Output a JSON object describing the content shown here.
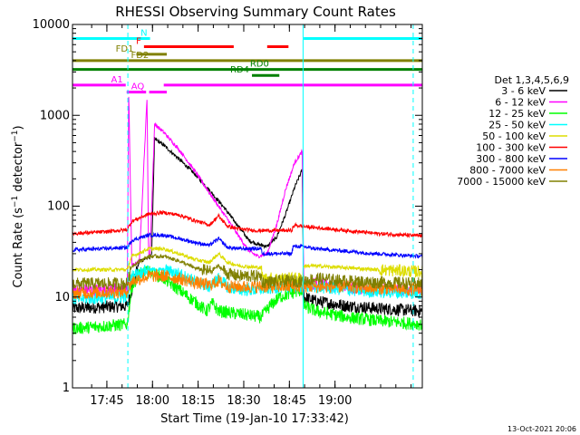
{
  "chart_data": {
    "type": "line",
    "title": "RHESSI Observing Summary Count Rates",
    "xlabel": "Start Time (19-Jan-10 17:33:42)",
    "ylabel": "Count Rate (s⁻¹ detector⁻¹)",
    "ylabel_parts": {
      "main": "Count Rate (s",
      "sup1": "−1",
      "mid": " detector",
      "sup2": "−1",
      "end": ")"
    },
    "yscale": "log",
    "xlim_min": [
      -0.0,
      115
    ],
    "ylim": [
      1,
      10000
    ],
    "ytick_values": [
      1,
      10,
      100,
      1000,
      10000
    ],
    "ytick_labels": [
      "1",
      "10",
      "100",
      "1000",
      "10000"
    ],
    "xtick_minutes": [
      11.3,
      26.3,
      41.3,
      56.3,
      71.3,
      86.3
    ],
    "xtick_labels": [
      "17:45",
      "18:00",
      "18:15",
      "18:30",
      "18:45",
      "19:00"
    ],
    "legend_title": "Det 1,3,4,5,6,9",
    "series": [
      {
        "name": "3 - 6 keV",
        "color": "#000000",
        "x": [
          0,
          18,
          19.5,
          22,
          26,
          27,
          30,
          35,
          40,
          45,
          50,
          53,
          56,
          58,
          61,
          64,
          67,
          70,
          73,
          75.5,
          76,
          80,
          90,
          100,
          115
        ],
        "values": [
          7.5,
          8,
          12,
          25,
          28,
          550,
          470,
          330,
          230,
          150,
          95,
          70,
          52,
          42,
          38,
          36,
          45,
          80,
          160,
          250,
          10,
          9,
          8,
          7.5,
          7
        ]
      },
      {
        "name": "6 - 12 keV",
        "color": "#ff00ff",
        "x": [
          0,
          18,
          18.5,
          19.5,
          22,
          24.5,
          25,
          25.5,
          27,
          30,
          35,
          40,
          45,
          50,
          55,
          58,
          61,
          64,
          67,
          70,
          73,
          75.5,
          76,
          80,
          90,
          100,
          115
        ],
        "values": [
          12,
          12,
          1900,
          22,
          25,
          1600,
          28,
          30,
          800,
          650,
          420,
          250,
          140,
          80,
          45,
          32,
          28,
          30,
          60,
          150,
          300,
          400,
          14,
          14,
          13,
          12,
          12
        ]
      },
      {
        "name": "12 - 25 keV",
        "color": "#00ff00",
        "x": [
          0,
          18,
          19.5,
          22,
          25,
          27,
          30,
          35,
          40,
          44,
          46,
          48,
          55,
          62,
          65,
          68,
          72,
          75.5,
          76,
          80,
          90,
          100,
          115
        ],
        "values": [
          4.5,
          5,
          13,
          18,
          19,
          18,
          16,
          12,
          9,
          7,
          8.5,
          7,
          6.5,
          6,
          8,
          10,
          11,
          12,
          8,
          7,
          6,
          5.5,
          5
        ]
      },
      {
        "name": "25 - 50 keV",
        "color": "#00ffff",
        "x": [
          0,
          18,
          19.5,
          25,
          30,
          35,
          40,
          45,
          48,
          51,
          55,
          60,
          65,
          70,
          75.5,
          76,
          80,
          90,
          100,
          115
        ],
        "values": [
          9.5,
          10,
          17,
          20,
          20,
          18,
          15,
          13,
          16,
          13,
          12,
          12,
          12.5,
          13,
          13,
          13,
          13,
          12,
          11.5,
          11
        ]
      },
      {
        "name": "50 - 100 keV",
        "color": "#dddd00",
        "x": [
          0,
          18,
          19.5,
          25,
          30,
          35,
          40,
          45,
          48,
          51,
          55,
          62,
          62.5,
          70,
          75.5,
          76,
          80,
          90,
          100,
          115
        ],
        "values": [
          20,
          20,
          28,
          34,
          34,
          30,
          26,
          24,
          30,
          24,
          22,
          21,
          16,
          16,
          16,
          22,
          22,
          21,
          20,
          19
        ]
      },
      {
        "name": "100 - 300 keV",
        "color": "#ff0000",
        "x": [
          0,
          10,
          18,
          19.5,
          25,
          30,
          35,
          40,
          45,
          48,
          51,
          55,
          60,
          62,
          68,
          72,
          73,
          75.5,
          80,
          90,
          100,
          115
        ],
        "values": [
          50,
          52,
          55,
          68,
          82,
          85,
          80,
          70,
          62,
          78,
          60,
          56,
          54,
          54,
          54,
          54,
          62,
          60,
          58,
          54,
          50,
          47
        ]
      },
      {
        "name": "300 - 800 keV",
        "color": "#0000ff",
        "x": [
          0,
          10,
          18,
          19.5,
          25,
          30,
          35,
          40,
          45,
          48,
          51,
          55,
          62,
          62.5,
          70,
          72,
          72.5,
          75.5,
          80,
          90,
          100,
          115
        ],
        "values": [
          33,
          34,
          35,
          42,
          48,
          48,
          44,
          40,
          37,
          44,
          35,
          34,
          34,
          30,
          30,
          30,
          36,
          36,
          34,
          32,
          30,
          28
        ]
      },
      {
        "name": "800 - 7000 keV",
        "color": "#ff8000",
        "x": [
          0,
          18,
          19.5,
          25,
          30,
          35,
          40,
          45,
          48,
          51,
          55,
          62,
          70,
          75.5,
          80,
          90,
          100,
          115
        ],
        "values": [
          11,
          11.5,
          15,
          17,
          17,
          16,
          14.5,
          13.5,
          15,
          13,
          13,
          13,
          13,
          13,
          13,
          13,
          12.5,
          12
        ]
      },
      {
        "name": "7000 - 15000 keV",
        "color": "#808000",
        "x": [
          0,
          18,
          19.5,
          25,
          30,
          35,
          40,
          45,
          48,
          51,
          55,
          62,
          62.5,
          70,
          75.5,
          76,
          80,
          90,
          100,
          115
        ],
        "values": [
          14,
          14,
          22,
          28,
          28,
          25,
          21,
          19,
          22,
          18,
          17,
          17,
          14.5,
          15,
          15,
          15,
          16,
          15,
          14.5,
          14
        ]
      }
    ],
    "flags": [
      {
        "label": "N",
        "color": "#00ffff",
        "level": 7000,
        "segments": [
          [
            0,
            25.5
          ],
          [
            76,
            115
          ]
        ],
        "label_at": 25.5
      },
      {
        "label": "F",
        "color": "#ff0000",
        "level": 5700,
        "segments": [
          [
            23.5,
            53
          ],
          [
            64,
            71
          ]
        ],
        "label_at": 23.5
      },
      {
        "label": "FD1",
        "color": "#808000",
        "level": 4700,
        "segments": [
          [
            21,
            31
          ]
        ],
        "label_at": 21
      },
      {
        "label": "FD2",
        "color": "#808000",
        "level": 4000,
        "segments": [
          [
            0,
            115
          ]
        ],
        "label_at": 26
      },
      {
        "label": "RD0",
        "color": "#008000",
        "level": 3200,
        "segments": [
          [
            0,
            115
          ]
        ],
        "label_at": 65.5
      },
      {
        "label": "RD4",
        "color": "#008000",
        "level": 2750,
        "segments": [
          [
            59,
            68
          ]
        ],
        "label_at": 59
      },
      {
        "label": "A1",
        "color": "#ff00ff",
        "level": 2150,
        "segments": [
          [
            0,
            17.5
          ],
          [
            30,
            115
          ]
        ],
        "label_at": 17.5
      },
      {
        "label": "AQ",
        "color": "#ff00ff",
        "level": 1800,
        "segments": [
          [
            17.8,
            24.2
          ],
          [
            25.2,
            31
          ]
        ],
        "label_at": 24.5
      }
    ],
    "vlines": [
      {
        "x": 18.2,
        "color": "#00ffff",
        "style": "dashed"
      },
      {
        "x": 112,
        "color": "#00ffff",
        "style": "dashed"
      },
      {
        "x": 0,
        "color": "#00ffff",
        "style": "solid"
      },
      {
        "x": 75.8,
        "color": "#00ffff",
        "style": "solid"
      }
    ],
    "footer_date": "13-Oct-2021 20:06"
  }
}
